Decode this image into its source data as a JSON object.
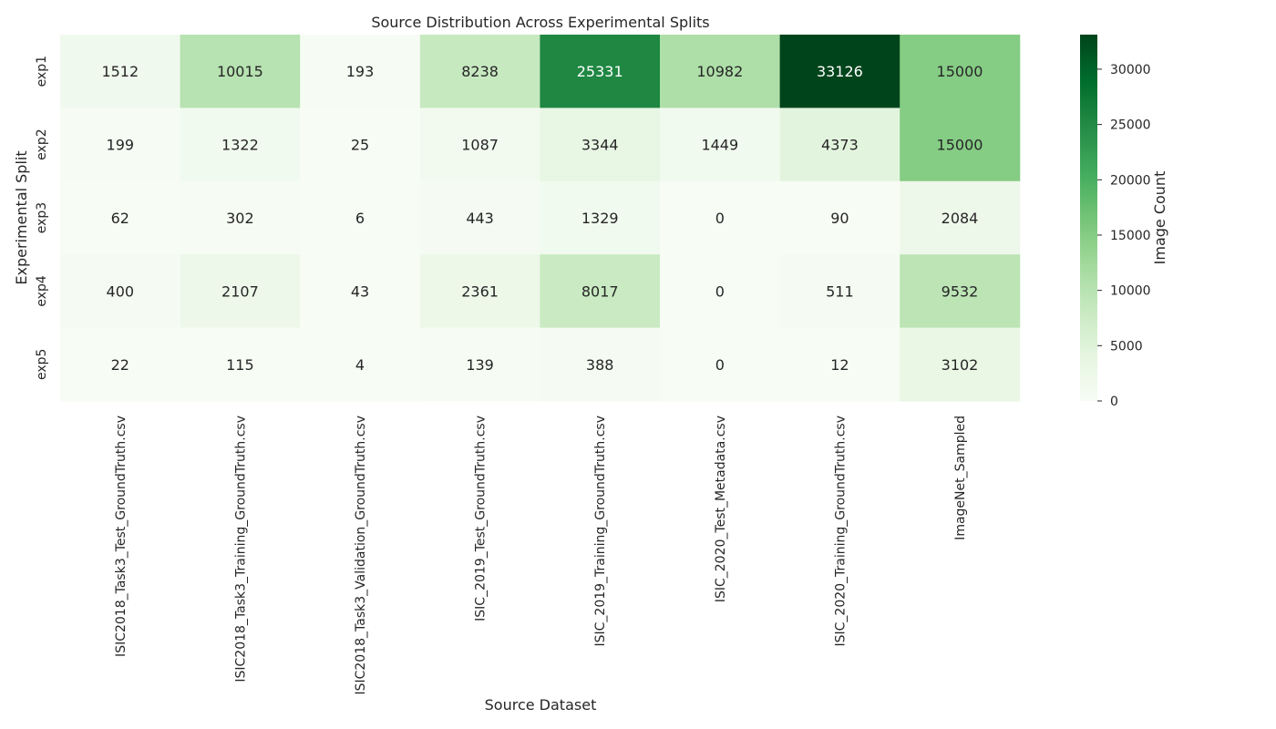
{
  "chart_data": {
    "type": "heatmap",
    "title": "Source Distribution Across Experimental Splits",
    "xlabel": "Source Dataset",
    "ylabel": "Experimental Split",
    "colorbar_label": "Image Count",
    "colormap": "Greens",
    "vmin": 0,
    "vmax": 33126,
    "colorbar_ticks": [
      0,
      5000,
      10000,
      15000,
      20000,
      25000,
      30000
    ],
    "rows": [
      "exp1",
      "exp2",
      "exp3",
      "exp4",
      "exp5"
    ],
    "columns": [
      "ISIC2018_Task3_Test_GroundTruth.csv",
      "ISIC2018_Task3_Training_GroundTruth.csv",
      "ISIC2018_Task3_Validation_GroundTruth.csv",
      "ISIC_2019_Test_GroundTruth.csv",
      "ISIC_2019_Training_GroundTruth.csv",
      "ISIC_2020_Test_Metadata.csv",
      "ISIC_2020_Training_GroundTruth.csv",
      "ImageNet_Sampled"
    ],
    "values": [
      [
        1512,
        10015,
        193,
        8238,
        25331,
        10982,
        33126,
        15000
      ],
      [
        199,
        1322,
        25,
        1087,
        3344,
        1449,
        4373,
        15000
      ],
      [
        62,
        302,
        6,
        443,
        1329,
        0,
        90,
        2084
      ],
      [
        400,
        2107,
        43,
        2361,
        8017,
        0,
        511,
        9532
      ],
      [
        22,
        115,
        4,
        139,
        388,
        0,
        12,
        3102
      ]
    ]
  }
}
